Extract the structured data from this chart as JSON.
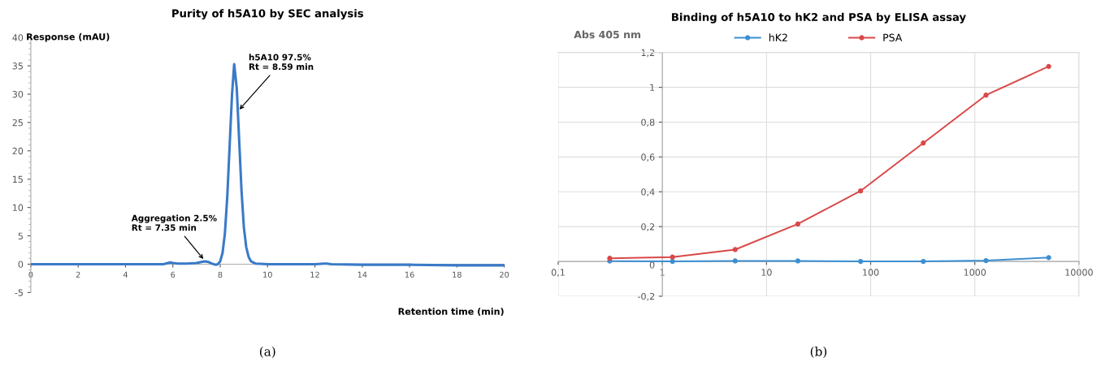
{
  "chart_data": [
    {
      "type": "line",
      "title": "Purity of h5A10 by SEC analysis",
      "xlabel": "Retention time (min)",
      "ylabel": "Response (mAU)",
      "x": [
        0,
        1,
        2,
        3,
        4,
        5,
        5.6,
        5.8,
        5.9,
        6.0,
        6.2,
        6.6,
        7.0,
        7.2,
        7.35,
        7.5,
        7.65,
        7.8,
        7.9,
        8.0,
        8.1,
        8.2,
        8.3,
        8.4,
        8.5,
        8.59,
        8.7,
        8.8,
        8.9,
        9.0,
        9.1,
        9.2,
        9.3,
        9.5,
        10,
        11,
        12,
        12.4,
        12.5,
        12.7,
        14,
        16,
        18,
        20
      ],
      "series": [
        {
          "color": "#3a7ac8",
          "values": [
            0,
            0,
            0,
            0,
            0,
            0,
            0,
            0.2,
            0.3,
            0.2,
            0.1,
            0.1,
            0.2,
            0.4,
            0.5,
            0.4,
            0.1,
            -0.1,
            0,
            0.5,
            2,
            5.5,
            12,
            21,
            30,
            35.3,
            31,
            22,
            13,
            6.5,
            3,
            1.3,
            0.5,
            0.1,
            0,
            0,
            0,
            0.1,
            0.1,
            0,
            -0.1,
            -0.1,
            -0.2,
            -0.2
          ]
        }
      ],
      "xlim": [
        0,
        20
      ],
      "xticks": [
        0,
        2,
        4,
        6,
        8,
        10,
        12,
        14,
        16,
        18,
        20
      ],
      "ylim": [
        -5,
        40
      ],
      "yticks": [
        -5,
        0,
        5,
        10,
        15,
        20,
        25,
        30,
        35,
        40
      ],
      "grid": false,
      "legend": false,
      "marker": "none",
      "line_style": "solid",
      "annotations": [
        {
          "text": "h5A10 97.5%\nRt = 8.59 min",
          "x": 8.75,
          "y": 27
        },
        {
          "text": "Aggregation 2.5%\nRt = 7.35 min",
          "x": 7.35,
          "y": 0.6
        },
        "(a)"
      ]
    },
    {
      "type": "line",
      "title": "Binding of h5A10 to hK2 and PSA by ELISA assay",
      "ylabel": "Abs 405 nm",
      "log": "x",
      "x": [
        0.3125,
        1.25,
        5,
        20,
        80,
        320,
        1280,
        5120
      ],
      "series": [
        {
          "name": "hK2",
          "color": "#3d8fd1",
          "values": [
            0.002,
            0,
            0.003,
            0.003,
            0,
            0,
            0.005,
            0.022
          ]
        },
        {
          "name": "PSA",
          "color": "#d94848",
          "values": [
            0.018,
            0.025,
            0.068,
            0.215,
            0.405,
            0.68,
            0.955,
            1.12
          ]
        }
      ],
      "xlim": [
        0.1,
        10000
      ],
      "xticks": [
        {
          "value": 0.1,
          "label": "0,1"
        },
        1,
        10,
        100,
        1000,
        10000
      ],
      "ylim": [
        -0.2,
        1.2
      ],
      "yticks": [
        {
          "value": -0.2,
          "label": "-0,2"
        },
        0,
        {
          "value": 0.2,
          "label": "0,2"
        },
        {
          "value": 0.4,
          "label": "0,4"
        },
        {
          "value": 0.6,
          "label": "0,6"
        },
        {
          "value": 0.8,
          "label": "0,8"
        },
        1,
        {
          "value": 1.2,
          "label": "1,2"
        }
      ],
      "grid": true,
      "legend": "top",
      "marker": "circle",
      "line_style": "solid",
      "annotations": [
        "(b)"
      ]
    }
  ]
}
